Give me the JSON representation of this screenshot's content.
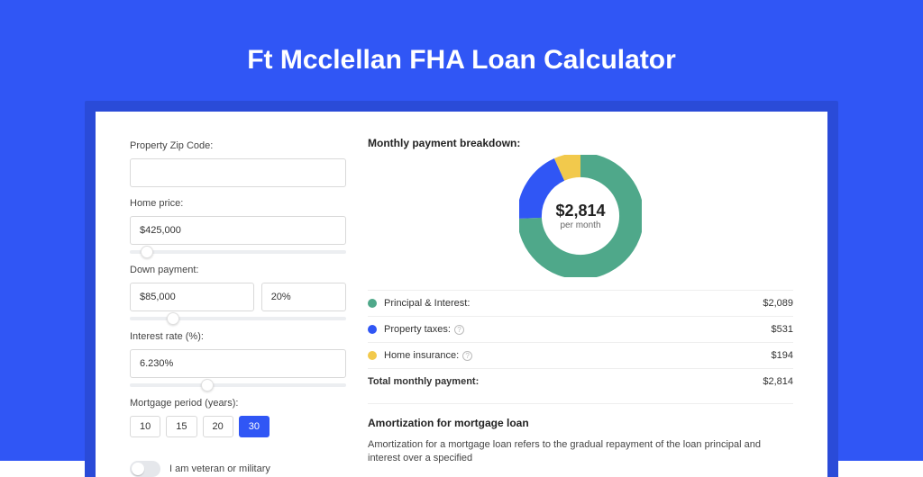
{
  "styling": {
    "hero_bg": "#3056f5",
    "shadow_bg": "#2a4bd8",
    "title_fontsize": 30,
    "section_title_fontsize": 12,
    "label_fontsize": 11,
    "input_fontsize": 11,
    "legend_fontsize": 11,
    "donut_amount_fontsize": 18,
    "donut_sub_fontsize": 10,
    "green": "#4fa88a",
    "blue": "#3056f5",
    "yellow": "#f2c94c"
  },
  "header": {
    "title": "Ft Mcclellan FHA Loan Calculator"
  },
  "form": {
    "zip_label": "Property Zip Code:",
    "zip_value": "",
    "price_label": "Home price:",
    "price_value": "$425,000",
    "price_slider_pct": 8,
    "down_label": "Down payment:",
    "down_value": "$85,000",
    "down_pct_value": "20%",
    "down_slider_pct": 20,
    "rate_label": "Interest rate (%):",
    "rate_value": "6.230%",
    "rate_slider_pct": 36,
    "period_label": "Mortgage period (years):",
    "periods": [
      "10",
      "15",
      "20",
      "30"
    ],
    "period_selected": 3,
    "veteran_label": "I am veteran or military",
    "veteran_on": false
  },
  "breakdown": {
    "title": "Monthly payment breakdown:",
    "donut": {
      "amount": "$2,814",
      "sub": "per month",
      "slices": [
        {
          "value": 2089,
          "color": "#4fa88a"
        },
        {
          "value": 531,
          "color": "#3056f5"
        },
        {
          "value": 194,
          "color": "#f2c94c"
        }
      ],
      "radius": 50,
      "stroke_width": 24,
      "total": 2814
    },
    "legend": [
      {
        "label": "Principal & Interest:",
        "value": "$2,089",
        "color": "#4fa88a",
        "info": false
      },
      {
        "label": "Property taxes:",
        "value": "$531",
        "color": "#3056f5",
        "info": true
      },
      {
        "label": "Home insurance:",
        "value": "$194",
        "color": "#f2c94c",
        "info": true
      }
    ],
    "total_label": "Total monthly payment:",
    "total_value": "$2,814"
  },
  "amortization": {
    "title": "Amortization for mortgage loan",
    "text": "Amortization for a mortgage loan refers to the gradual repayment of the loan principal and interest over a specified"
  }
}
